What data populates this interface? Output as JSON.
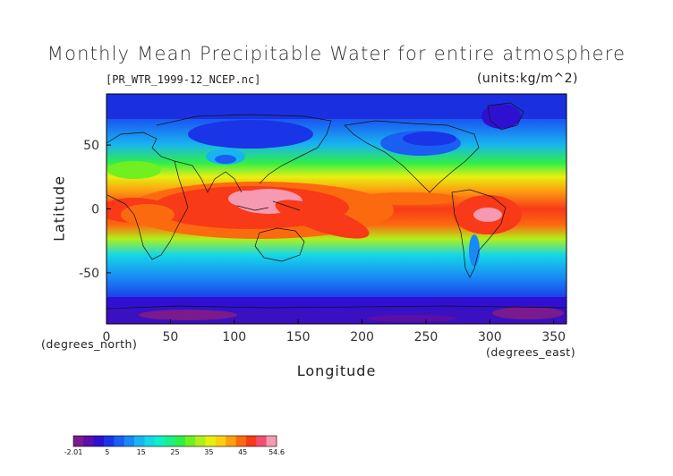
{
  "chart_data": {
    "type": "heatmap",
    "title": "Monthly Mean Precipitable Water for entire atmosphere",
    "source_label": "[PR_WTR_1999-12_NCEP.nc]",
    "units_label": "(units:kg/m^2)",
    "xlabel": "Longitude",
    "ylabel": "Latitude",
    "x_units": "(degrees_east)",
    "y_units": "(degrees_north)",
    "xlim": [
      0,
      360
    ],
    "ylim": [
      -90,
      90
    ],
    "x_ticks": [
      0,
      50,
      100,
      150,
      200,
      250,
      300,
      350
    ],
    "y_ticks": [
      50,
      0,
      -50
    ],
    "colorbar": {
      "min": -2.01,
      "max": 54.6,
      "tick_labels": [
        "-2.01",
        "5",
        "15",
        "25",
        "35",
        "45",
        "54.6"
      ],
      "colors": [
        "#7a1a8c",
        "#5a0fa8",
        "#2f10d0",
        "#1a34e8",
        "#1a5ef2",
        "#1a88f5",
        "#18b4f0",
        "#14d8e6",
        "#10eec4",
        "#18f08a",
        "#30ee4a",
        "#70f020",
        "#b0f018",
        "#e6f010",
        "#fad010",
        "#fca010",
        "#fc6a10",
        "#f83a18",
        "#f05070",
        "#f59ab0"
      ]
    }
  }
}
